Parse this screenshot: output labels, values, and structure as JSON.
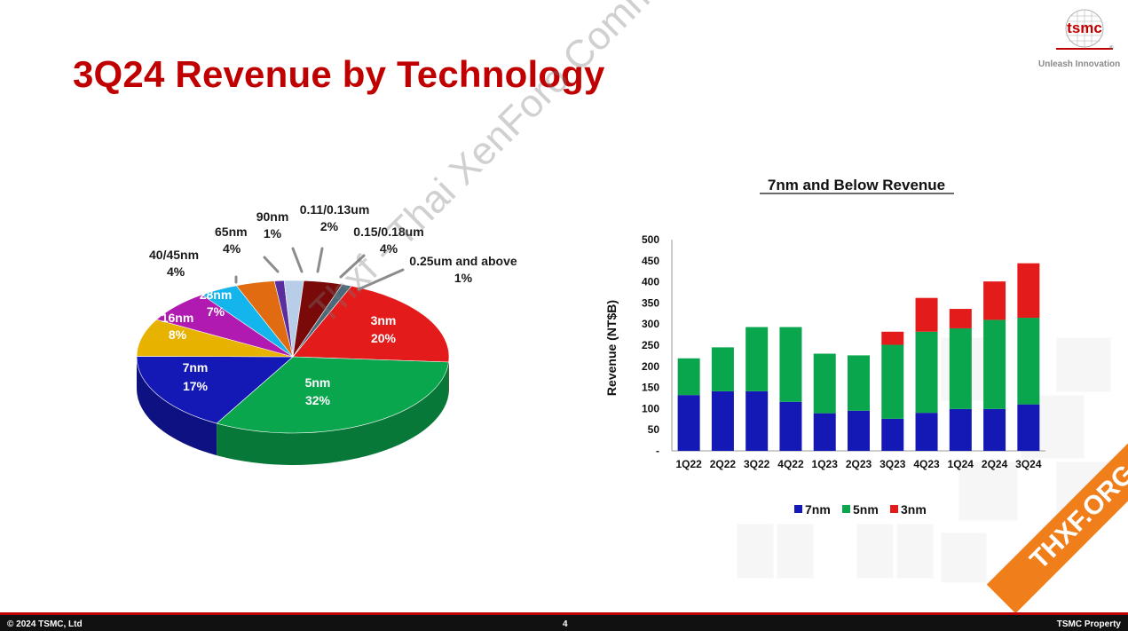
{
  "slide": {
    "title": "3Q24 Revenue by Technology",
    "logo_text": "tsmc",
    "tagline": "Unleash Innovation",
    "copyright": "© 2024 TSMC, Ltd",
    "page_number": "4",
    "footer_right": "TSMC Property",
    "watermark": "Thxf - Thai XenForo Community",
    "badge": "THXF.ORG"
  },
  "colors": {
    "brand_red": "#c00000",
    "footer_bg": "#111111"
  },
  "chart_data": [
    {
      "type": "pie",
      "title": "",
      "slices": [
        {
          "label": "3nm",
          "value": 20,
          "value_label": "20%",
          "color": "#e31b1b"
        },
        {
          "label": "5nm",
          "value": 32,
          "value_label": "32%",
          "color": "#0aa64e"
        },
        {
          "label": "7nm",
          "value": 17,
          "value_label": "17%",
          "color": "#1418b4"
        },
        {
          "label": "16nm",
          "value": 8,
          "value_label": "8%",
          "color": "#e8b200"
        },
        {
          "label": "28nm",
          "value": 7,
          "value_label": "7%",
          "color": "#b01ab0"
        },
        {
          "label": "40/45nm",
          "value": 4,
          "value_label": "4%",
          "color": "#14b4ec"
        },
        {
          "label": "65nm",
          "value": 4,
          "value_label": "4%",
          "color": "#e06b10"
        },
        {
          "label": "90nm",
          "value": 1,
          "value_label": "1%",
          "color": "#5a2e9e"
        },
        {
          "label": "0.11/0.13um",
          "value": 2,
          "value_label": "2%",
          "color": "#b8cde8"
        },
        {
          "label": "0.15/0.18um",
          "value": 4,
          "value_label": "4%",
          "color": "#7a0a0a"
        },
        {
          "label": "0.25um and above",
          "value": 1,
          "value_label": "1%",
          "color": "#4a6a7a"
        }
      ]
    },
    {
      "type": "bar",
      "stacked": true,
      "title": "7nm and Below Revenue",
      "xlabel": "",
      "ylabel": "Revenue (NT$B)",
      "ylim": [
        0,
        500
      ],
      "yticks": [
        "-",
        "50",
        "100",
        "150",
        "200",
        "250",
        "300",
        "350",
        "400",
        "450",
        "500"
      ],
      "categories": [
        "1Q22",
        "2Q22",
        "3Q22",
        "4Q22",
        "1Q23",
        "2Q23",
        "3Q23",
        "4Q23",
        "1Q24",
        "2Q24",
        "3Q24"
      ],
      "series": [
        {
          "name": "7nm",
          "color": "#1418b4",
          "values": [
            132,
            141,
            141,
            116,
            89,
            95,
            76,
            90,
            99,
            99,
            110
          ]
        },
        {
          "name": "5nm",
          "color": "#0aa64e",
          "values": [
            87,
            104,
            152,
            177,
            141,
            131,
            175,
            192,
            191,
            211,
            205
          ]
        },
        {
          "name": "3nm",
          "color": "#e31b1b",
          "values": [
            0,
            0,
            0,
            0,
            0,
            0,
            31,
            80,
            46,
            91,
            129
          ]
        }
      ],
      "legend": "bottom"
    }
  ]
}
